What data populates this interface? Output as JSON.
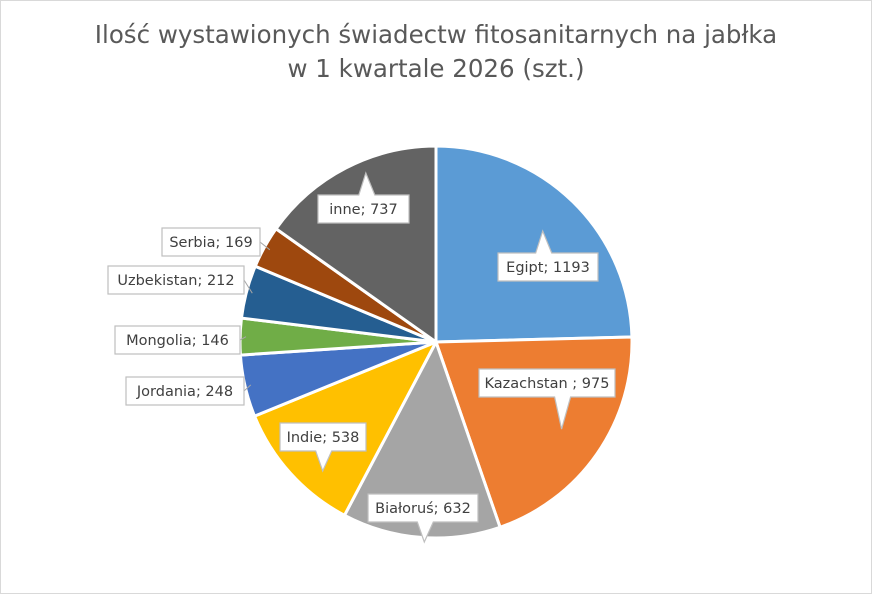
{
  "chart_data": {
    "type": "pie",
    "title_lines": [
      "Ilość wystawionych świadectw fitosanitarnych na jabłka",
      "w 1 kwartale 2026 (szt.)"
    ],
    "slices": [
      {
        "label": "Egipt; 1193",
        "value": 1193,
        "color": "#5b9bd5"
      },
      {
        "label": "Kazachstan ; 975",
        "value": 975,
        "color": "#ed7d31"
      },
      {
        "label": "Białoruś; 632",
        "value": 632,
        "color": "#a5a5a5"
      },
      {
        "label": "Indie; 538",
        "value": 538,
        "color": "#ffc000"
      },
      {
        "label": "Jordania; 248",
        "value": 248,
        "color": "#4472c4"
      },
      {
        "label": "Mongolia; 146",
        "value": 146,
        "color": "#70ad47"
      },
      {
        "label": "Uzbekistan; 212",
        "value": 212,
        "color": "#255e91"
      },
      {
        "label": "Serbia; 169",
        "value": 169,
        "color": "#9e480e"
      },
      {
        "label": "inne; 737",
        "value": 737,
        "color": "#636363"
      }
    ],
    "legend": "none"
  }
}
